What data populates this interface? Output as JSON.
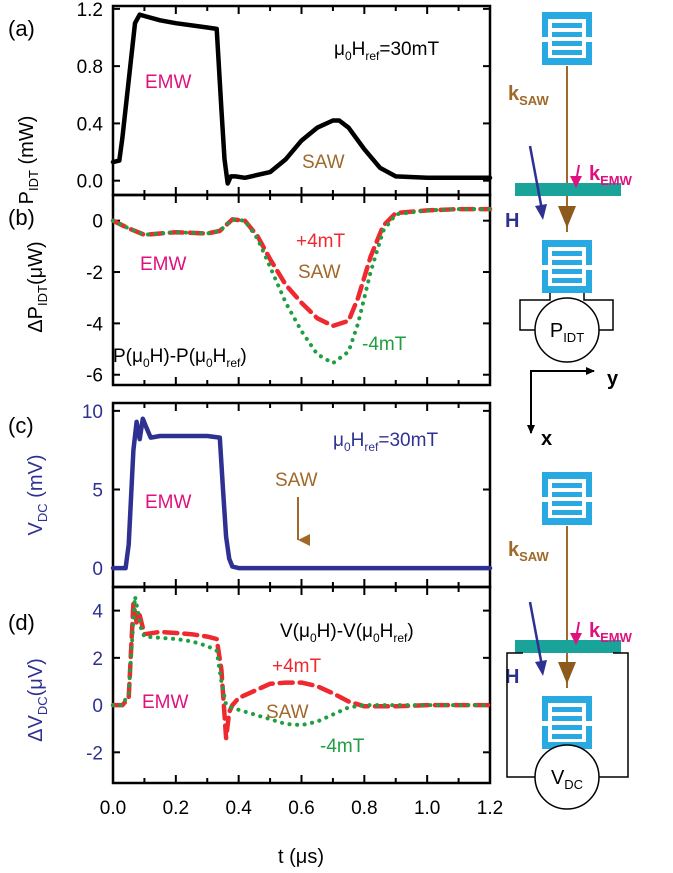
{
  "colors": {
    "black": "#000000",
    "navy": "#2e3192",
    "magenta": "#e0107f",
    "brown": "#a0692a",
    "red": "#ee2a30",
    "green": "#1f9f3f",
    "teal": "#1aa398",
    "idt_blue": "#29a9e1"
  },
  "chart_data": [
    {
      "type": "line",
      "panel_label": "(a)",
      "ylabel": "P",
      "ylabel_sub": "IDT",
      "ylabel_unit": " (mW)",
      "xlim": [
        0.0,
        1.2
      ],
      "ylim": [
        -0.1,
        1.22
      ],
      "yticks": [
        "0.0",
        "0.4",
        "0.8",
        "1.2"
      ],
      "ytick_values": [
        0.0,
        0.4,
        0.8,
        1.2
      ],
      "annotations": {
        "condition_pre": "μ",
        "condition_sub1": "0",
        "condition_mid": "H",
        "condition_sub2": "ref",
        "condition_post": "=30mT",
        "emw": "EMW",
        "saw": "SAW"
      },
      "series": [
        {
          "style": "solid",
          "x": [
            0.0,
            0.02,
            0.03,
            0.05,
            0.07,
            0.085,
            0.1,
            0.15,
            0.2,
            0.3,
            0.33,
            0.345,
            0.355,
            0.365,
            0.375,
            0.39,
            0.42,
            0.5,
            0.55,
            0.6,
            0.65,
            0.7,
            0.72,
            0.75,
            0.8,
            0.85,
            0.9,
            1.0,
            1.1,
            1.2
          ],
          "y": [
            0.13,
            0.14,
            0.3,
            0.7,
            1.1,
            1.16,
            1.15,
            1.12,
            1.1,
            1.07,
            1.06,
            0.5,
            0.15,
            -0.02,
            0.03,
            0.03,
            0.02,
            0.06,
            0.15,
            0.28,
            0.37,
            0.42,
            0.42,
            0.37,
            0.22,
            0.09,
            0.03,
            0.02,
            0.02,
            0.02
          ]
        }
      ]
    },
    {
      "type": "line",
      "panel_label": "(b)",
      "ylabel": "ΔP",
      "ylabel_sub": "IDT",
      "ylabel_unit": "(μW)",
      "xlim": [
        0.0,
        1.2
      ],
      "ylim": [
        -6.4,
        1.0
      ],
      "yticks": [
        "0",
        "-2",
        "-4",
        "-6"
      ],
      "ytick_values": [
        0,
        -2,
        -4,
        -6
      ],
      "annotations": {
        "formula_a": "P(μ",
        "formula_sub1": "0",
        "formula_b": "H)-P(μ",
        "formula_sub2": "0",
        "formula_c": "H",
        "formula_sub3": "ref",
        "formula_d": ")",
        "emw": "EMW",
        "saw": "SAW",
        "plus": "+4mT",
        "minus": "-4mT"
      },
      "series": [
        {
          "name": "+4mT",
          "style": "dashed",
          "x": [
            0.0,
            0.05,
            0.1,
            0.2,
            0.3,
            0.34,
            0.38,
            0.42,
            0.46,
            0.5,
            0.55,
            0.6,
            0.65,
            0.7,
            0.75,
            0.78,
            0.82,
            0.86,
            0.9,
            1.0,
            1.1,
            1.2
          ],
          "y": [
            0.0,
            -0.3,
            -0.55,
            -0.45,
            -0.5,
            -0.4,
            0.05,
            0.0,
            -0.6,
            -1.5,
            -2.5,
            -3.2,
            -3.8,
            -4.1,
            -3.9,
            -3.0,
            -1.4,
            -0.2,
            0.3,
            0.4,
            0.45,
            0.45
          ]
        },
        {
          "name": "-4mT",
          "style": "dotted",
          "x": [
            0.0,
            0.05,
            0.1,
            0.2,
            0.3,
            0.34,
            0.38,
            0.42,
            0.46,
            0.5,
            0.55,
            0.6,
            0.65,
            0.7,
            0.75,
            0.78,
            0.82,
            0.86,
            0.9,
            1.0,
            1.1,
            1.2
          ],
          "y": [
            0.0,
            -0.3,
            -0.55,
            -0.45,
            -0.5,
            -0.4,
            0.05,
            0.0,
            -0.7,
            -1.8,
            -3.2,
            -4.3,
            -5.2,
            -5.55,
            -5.1,
            -4.0,
            -2.0,
            -0.4,
            0.25,
            0.4,
            0.45,
            0.45
          ]
        }
      ]
    },
    {
      "type": "line",
      "panel_label": "(c)",
      "ylabel": "V",
      "ylabel_sub": "DC",
      "ylabel_unit": " (mV)",
      "xlim": [
        0.0,
        1.2
      ],
      "ylim": [
        -1.2,
        10.5
      ],
      "yticks": [
        "0",
        "5",
        "10"
      ],
      "ytick_values": [
        0,
        5,
        10
      ],
      "annotations": {
        "condition_pre": "μ",
        "condition_sub1": "0",
        "condition_mid": "H",
        "condition_sub2": "ref",
        "condition_post": "=30mT",
        "emw": "EMW",
        "saw": "SAW"
      },
      "series": [
        {
          "style": "solid",
          "x": [
            0.0,
            0.04,
            0.05,
            0.065,
            0.075,
            0.085,
            0.095,
            0.105,
            0.12,
            0.15,
            0.2,
            0.3,
            0.34,
            0.35,
            0.36,
            0.37,
            0.38,
            0.4,
            0.5,
            0.6,
            0.8,
            1.0,
            1.2
          ],
          "y": [
            0.0,
            0.0,
            1.5,
            7.5,
            9.3,
            8.2,
            9.5,
            9.0,
            8.3,
            8.4,
            8.4,
            8.4,
            8.3,
            5.0,
            2.0,
            0.6,
            0.1,
            0.0,
            0.0,
            0.0,
            0.0,
            0.0,
            0.0
          ]
        }
      ]
    },
    {
      "type": "line",
      "panel_label": "(d)",
      "ylabel": "ΔV",
      "ylabel_sub": "DC",
      "ylabel_unit": "(μV)",
      "xlabel": "t (μs)",
      "xlim": [
        0.0,
        1.2
      ],
      "ylim": [
        -3.3,
        5.0
      ],
      "xticks": [
        "0.0",
        "0.2",
        "0.4",
        "0.6",
        "0.8",
        "1.0",
        "1.2"
      ],
      "xtick_values": [
        0.0,
        0.2,
        0.4,
        0.6,
        0.8,
        1.0,
        1.2
      ],
      "yticks": [
        "4",
        "2",
        "0",
        "-2"
      ],
      "ytick_values": [
        4,
        2,
        0,
        -2
      ],
      "annotations": {
        "formula_a": "V(μ",
        "formula_sub1": "0",
        "formula_b": "H)-V(μ",
        "formula_sub2": "0",
        "formula_c": "H",
        "formula_sub3": "ref",
        "formula_d": ")",
        "emw": "EMW",
        "saw": "SAW",
        "plus": "+4mT",
        "minus": "-4mT"
      },
      "series": [
        {
          "name": "+4mT",
          "style": "dashed",
          "x": [
            0.0,
            0.03,
            0.05,
            0.065,
            0.075,
            0.085,
            0.1,
            0.15,
            0.2,
            0.25,
            0.3,
            0.33,
            0.345,
            0.36,
            0.37,
            0.38,
            0.4,
            0.45,
            0.5,
            0.55,
            0.6,
            0.65,
            0.7,
            0.75,
            0.8,
            0.9,
            1.0,
            1.1,
            1.2
          ],
          "y": [
            0.0,
            0.0,
            0.3,
            4.3,
            3.5,
            3.8,
            3.0,
            3.1,
            3.05,
            3.0,
            2.9,
            2.8,
            1.5,
            -1.4,
            -0.3,
            0.0,
            0.3,
            0.6,
            0.9,
            0.95,
            0.95,
            0.8,
            0.5,
            0.15,
            -0.05,
            -0.05,
            0.0,
            0.0,
            0.0
          ]
        },
        {
          "name": "-4mT",
          "style": "dotted",
          "x": [
            0.0,
            0.03,
            0.05,
            0.07,
            0.09,
            0.1,
            0.15,
            0.2,
            0.25,
            0.3,
            0.33,
            0.345,
            0.36,
            0.375,
            0.4,
            0.45,
            0.5,
            0.55,
            0.6,
            0.65,
            0.7,
            0.75,
            0.8,
            0.9,
            1.0,
            1.1,
            1.2
          ],
          "y": [
            0.0,
            0.0,
            0.5,
            4.6,
            3.2,
            2.9,
            2.85,
            2.8,
            2.7,
            2.5,
            2.3,
            1.0,
            0.0,
            -0.1,
            -0.2,
            -0.4,
            -0.6,
            -0.8,
            -0.85,
            -0.7,
            -0.4,
            -0.1,
            0.0,
            0.0,
            0.0,
            0.0,
            0.0
          ]
        }
      ]
    }
  ],
  "schematic": {
    "k_saw_main": "k",
    "k_saw_sub": "SAW",
    "k_emw_main": "k",
    "k_emw_sub": "EMW",
    "h_label": "H",
    "p_meter_main": "P",
    "p_meter_sub": "IDT",
    "v_meter_main": "V",
    "v_meter_sub": "DC",
    "axis_y": "y",
    "axis_x": "x"
  }
}
